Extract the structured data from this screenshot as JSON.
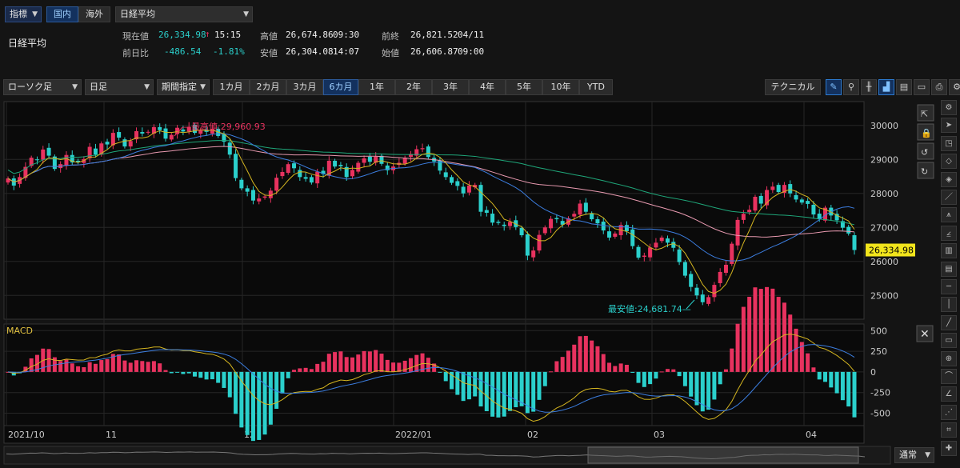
{
  "header": {
    "index_type": "指標",
    "tab_domestic": "国内",
    "tab_overseas": "海外",
    "symbol_select": "日経平均",
    "symbol_name": "日経平均"
  },
  "quote": {
    "current_label": "現在値",
    "current_value": "26,334.98",
    "current_arrow": "↑",
    "current_time": "15:15",
    "change_label": "前日比",
    "change_value": "-486.54",
    "change_pct": "-1.81%",
    "high_label": "高値",
    "high_value": "26,674.86",
    "high_time": "09:30",
    "low_label": "安値",
    "low_value": "26,304.08",
    "low_time": "14:07",
    "prev_label": "前終",
    "prev_value": "26,821.52",
    "prev_date": "04/11",
    "open_label": "始値",
    "open_value": "26,606.87",
    "open_time": "09:00"
  },
  "toolbar": {
    "chart_type": "ローソク足",
    "interval": "日足",
    "period_mode": "期間指定",
    "periods": [
      "1カ月",
      "2カ月",
      "3カ月",
      "6カ月",
      "1年",
      "2年",
      "3年",
      "4年",
      "5年",
      "10年",
      "YTD"
    ],
    "active_period": "6カ月",
    "technical": "テクニカル",
    "tool_icons": [
      "pencil-icon",
      "zoom-icon",
      "bar-icon",
      "area-icon",
      "save-icon",
      "folder-icon",
      "print-icon",
      "settings-icon"
    ]
  },
  "colors": {
    "up": "#e8325f",
    "down": "#2bd0cc",
    "ma5": "#d4b520",
    "ma25": "#3c7ee0",
    "ma75": "#e89ab0",
    "ma200": "#1fa77a",
    "price_tag": "#f2e51c",
    "macd": "#3c7ee0",
    "signal": "#d4b520"
  },
  "chart_data": {
    "type": "candlestick",
    "price_axis": {
      "ticks": [
        25000,
        26000,
        27000,
        28000,
        29000,
        30000
      ],
      "ylim": [
        24300,
        30700
      ]
    },
    "macd_axis": {
      "ticks": [
        -500,
        -250,
        0,
        250,
        500
      ],
      "ylim": [
        -650,
        580
      ]
    },
    "x_labels": [
      "2021/10",
      "11",
      "12",
      "2022/01",
      "02",
      "03",
      "04"
    ],
    "max_annotation": "最高値:29,960.93",
    "min_annotation": "最安値:24,681.74",
    "current_price_tag": "26,334.98",
    "macd_title": "MACD",
    "close_series_approx": [
      28440,
      28230,
      28480,
      28780,
      29050,
      28990,
      29290,
      29110,
      28720,
      28860,
      29130,
      28910,
      28920,
      29010,
      29370,
      29140,
      29470,
      29440,
      29780,
      29640,
      29380,
      29540,
      29830,
      29760,
      29810,
      29950,
      29860,
      29610,
      29720,
      29930,
      29820,
      29960,
      29780,
      29850,
      29810,
      29900,
      29690,
      29520,
      29140,
      28450,
      28150,
      28050,
      27790,
      27850,
      27910,
      28080,
      28460,
      28630,
      28860,
      28740,
      28480,
      28430,
      28320,
      28640,
      28570,
      28960,
      28790,
      28800,
      28480,
      28690,
      28900,
      29030,
      28930,
      29080,
      28870,
      28680,
      28790,
      28900,
      29050,
      29160,
      29300,
      29330,
      29070,
      28940,
      28670,
      28480,
      28310,
      28220,
      28000,
      28230,
      28250,
      27460,
      27430,
      27140,
      27130,
      27040,
      27160,
      27010,
      26770,
      26170,
      26320,
      26780,
      27000,
      27250,
      27240,
      27080,
      27270,
      27400,
      27700,
      27460,
      27240,
      27120,
      26910,
      26700,
      26820,
      27070,
      26890,
      26450,
      26110,
      26170,
      26410,
      26550,
      26700,
      26550,
      26400,
      25980,
      25580,
      25250,
      25000,
      24800,
      24950,
      25310,
      25690,
      25900,
      26520,
      27220,
      27400,
      27520,
      27900,
      27700,
      28100,
      28200,
      28040,
      28250,
      28000,
      27820,
      27730,
      27690,
      27380,
      27250,
      27580,
      27350,
      27210,
      26990,
      26820,
      26335
    ]
  }
}
